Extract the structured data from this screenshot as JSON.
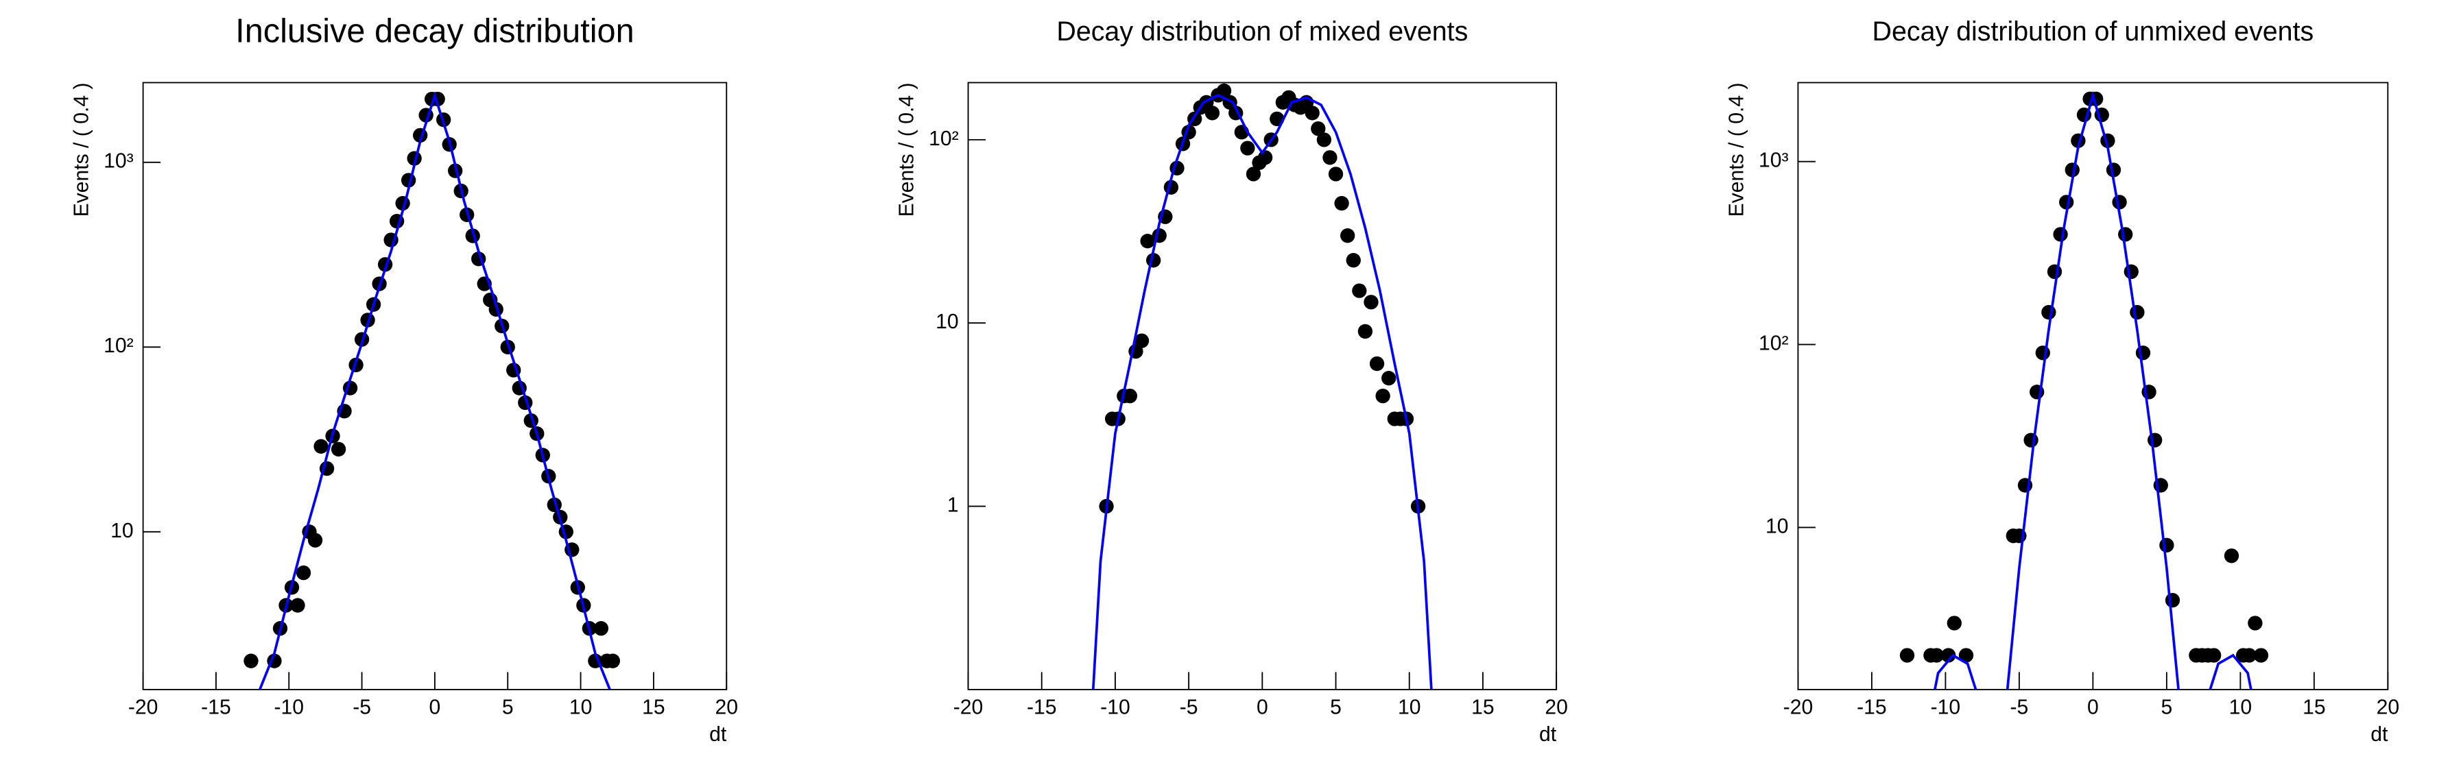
{
  "chart_data": [
    {
      "type": "scatter",
      "title": "Inclusive decay distribution",
      "xlabel": "dt",
      "ylabel": "Events / ( 0.4 )",
      "xlim": [
        -20,
        20
      ],
      "xticks": [
        -20,
        -15,
        -10,
        -5,
        0,
        5,
        10,
        15,
        20
      ],
      "ylim": [
        1.4,
        2700
      ],
      "yticks": [
        10,
        {
          "value": 100,
          "label": "10²"
        },
        {
          "value": 1000,
          "label": "10³"
        }
      ],
      "log_y": true,
      "series": [
        {
          "type": "scatter",
          "color": "#000000",
          "x": [
            -12.6,
            -12.2,
            -11.8,
            -11.4,
            -11.0,
            -10.6,
            -10.2,
            -9.8,
            -9.4,
            -9.0,
            -8.6,
            -8.2,
            -7.8,
            -7.4,
            -7.0,
            -6.6,
            -6.2,
            -5.8,
            -5.4,
            -5.0,
            -4.6,
            -4.2,
            -3.8,
            -3.4,
            -3.0,
            -2.6,
            -2.2,
            -1.8,
            -1.4,
            -1.0,
            -0.6,
            -0.2,
            0.2,
            0.6,
            1.0,
            1.4,
            1.8,
            2.2,
            2.6,
            3.0,
            3.4,
            3.8,
            4.2,
            4.6,
            5.0,
            5.4,
            5.8,
            6.2,
            6.6,
            7.0,
            7.4,
            7.8,
            8.2,
            8.6,
            9.0,
            9.4,
            9.8,
            10.2,
            10.6,
            11.0,
            11.4,
            11.8,
            12.2
          ],
          "values": [
            2,
            null,
            null,
            null,
            2,
            3,
            4,
            5,
            4,
            6,
            10,
            9,
            29,
            22,
            33,
            28,
            45,
            60,
            80,
            110,
            140,
            170,
            220,
            280,
            380,
            480,
            600,
            800,
            1050,
            1400,
            1800,
            2200,
            2200,
            1700,
            1250,
            900,
            700,
            520,
            400,
            300,
            220,
            180,
            160,
            130,
            100,
            75,
            60,
            50,
            40,
            34,
            26,
            20,
            14,
            12,
            10,
            8,
            5,
            4,
            3,
            2,
            3,
            2,
            2
          ]
        },
        {
          "type": "line",
          "color": "#0000ff",
          "x": [
            -12,
            -11,
            -10,
            -9,
            -8,
            -7,
            -6,
            -5,
            -4,
            -3,
            -2,
            -1,
            0,
            1,
            2,
            3,
            4,
            5,
            6,
            7,
            8,
            9,
            10,
            11,
            12
          ],
          "values": [
            1.4,
            2.2,
            4.5,
            9,
            17,
            34,
            60,
            105,
            190,
            330,
            620,
            1300,
            2300,
            1300,
            620,
            330,
            190,
            105,
            60,
            34,
            17,
            9,
            4.5,
            2.2,
            1.4
          ]
        }
      ]
    },
    {
      "type": "scatter",
      "title": "Decay distribution of mixed events",
      "xlabel": "dt",
      "ylabel": "Events / ( 0.4 )",
      "xlim": [
        -20,
        20
      ],
      "xticks": [
        -20,
        -15,
        -10,
        -5,
        0,
        5,
        10,
        15,
        20
      ],
      "ylim": [
        0.1,
        205
      ],
      "yticks": [
        1,
        10,
        {
          "value": 100,
          "label": "10²"
        }
      ],
      "log_y": true,
      "series": [
        {
          "type": "scatter",
          "color": "#000000",
          "x": [
            -10.6,
            -10.2,
            -9.8,
            -9.4,
            -9.0,
            -8.6,
            -8.2,
            -7.8,
            -7.4,
            -7.0,
            -6.6,
            -6.2,
            -5.8,
            -5.4,
            -5.0,
            -4.6,
            -4.2,
            -3.8,
            -3.4,
            -3.0,
            -2.6,
            -2.2,
            -1.8,
            -1.4,
            -1.0,
            -0.6,
            -0.2,
            0.2,
            0.6,
            1.0,
            1.4,
            1.8,
            2.2,
            2.6,
            3.0,
            3.4,
            3.8,
            4.2,
            4.6,
            5.0,
            5.4,
            5.8,
            6.2,
            6.6,
            7.0,
            7.4,
            7.8,
            8.2,
            8.6,
            9.0,
            9.4,
            9.8,
            10.2,
            10.6
          ],
          "values": [
            1,
            3,
            3,
            4,
            4,
            7,
            8,
            28,
            22,
            30,
            38,
            55,
            70,
            95,
            110,
            130,
            150,
            160,
            140,
            175,
            185,
            160,
            140,
            110,
            90,
            65,
            75,
            80,
            100,
            130,
            160,
            170,
            155,
            150,
            160,
            140,
            115,
            100,
            80,
            65,
            45,
            30,
            22,
            15,
            9,
            13,
            6,
            4,
            5,
            3,
            3,
            3,
            null,
            1
          ]
        },
        {
          "type": "line",
          "color": "#0000ff",
          "x": [
            -11.5,
            -11,
            -10,
            -9,
            -8,
            -7,
            -6,
            -5,
            -4,
            -3,
            -2,
            -1,
            0,
            1,
            2,
            3,
            4,
            5,
            6,
            7,
            8,
            9,
            10,
            11,
            11.5
          ],
          "values": [
            0.1,
            0.5,
            2.5,
            6,
            15,
            35,
            70,
            120,
            160,
            175,
            160,
            110,
            85,
            110,
            160,
            170,
            155,
            110,
            65,
            33,
            15,
            6,
            2.5,
            0.5,
            0.1
          ]
        }
      ]
    },
    {
      "type": "scatter",
      "title": "Decay distribution of unmixed events",
      "xlabel": "dt",
      "ylabel": "Events / ( 0.4 )",
      "xlim": [
        -20,
        20
      ],
      "xticks": [
        -20,
        -15,
        -10,
        -5,
        0,
        5,
        10,
        15,
        20
      ],
      "ylim": [
        1.3,
        2700
      ],
      "yticks": [
        10,
        {
          "value": 100,
          "label": "10²"
        },
        {
          "value": 1000,
          "label": "10³"
        }
      ],
      "log_y": true,
      "series": [
        {
          "type": "scatter",
          "color": "#000000",
          "x": [
            -12.6,
            -12.2,
            -11.8,
            -11.4,
            -11.0,
            -10.6,
            -10.2,
            -9.8,
            -9.4,
            -9.0,
            -8.6,
            -8.2,
            -7.8,
            -7.4,
            -7.0,
            -6.6,
            -6.2,
            -5.8,
            -5.4,
            -5.0,
            -4.6,
            -4.2,
            -3.8,
            -3.4,
            -3.0,
            -2.6,
            -2.2,
            -1.8,
            -1.4,
            -1.0,
            -0.6,
            -0.2,
            0.2,
            0.6,
            1.0,
            1.4,
            1.8,
            2.2,
            2.6,
            3.0,
            3.4,
            3.8,
            4.2,
            4.6,
            5.0,
            5.4,
            5.8,
            6.2,
            6.6,
            7.0,
            7.4,
            7.8,
            8.2,
            8.6,
            9.0,
            9.4,
            9.8,
            10.2,
            10.6,
            11.0,
            11.4,
            11.8,
            12.2
          ],
          "values": [
            2,
            null,
            null,
            null,
            2,
            2,
            null,
            2,
            3,
            null,
            2,
            null,
            null,
            null,
            null,
            null,
            null,
            null,
            9,
            9,
            17,
            30,
            55,
            90,
            150,
            250,
            400,
            600,
            900,
            1300,
            1800,
            2200,
            2200,
            1800,
            1300,
            900,
            600,
            400,
            250,
            150,
            90,
            55,
            30,
            17,
            8,
            4,
            null,
            null,
            null,
            2,
            2,
            2,
            2,
            null,
            null,
            7,
            null,
            2,
            2,
            3,
            2,
            null,
            null
          ]
        },
        {
          "type": "line",
          "color": "#0000ff",
          "x": [
            -11,
            -10.5,
            -9.5,
            -8.5,
            -7.5,
            -6.5,
            -5.8,
            -5,
            -4,
            -3,
            -2,
            -1,
            0,
            1,
            2,
            3,
            4,
            5,
            5.8,
            6.5,
            7.5,
            8.5,
            9.5,
            10.5,
            11
          ],
          "values": [
            1.0,
            1.6,
            2.0,
            1.8,
            1.0,
            0.5,
            1.3,
            6,
            30,
            120,
            420,
            1200,
            2300,
            1200,
            420,
            120,
            30,
            6,
            1.3,
            0.5,
            1.0,
            1.8,
            2.0,
            1.6,
            1.0
          ]
        }
      ]
    }
  ]
}
